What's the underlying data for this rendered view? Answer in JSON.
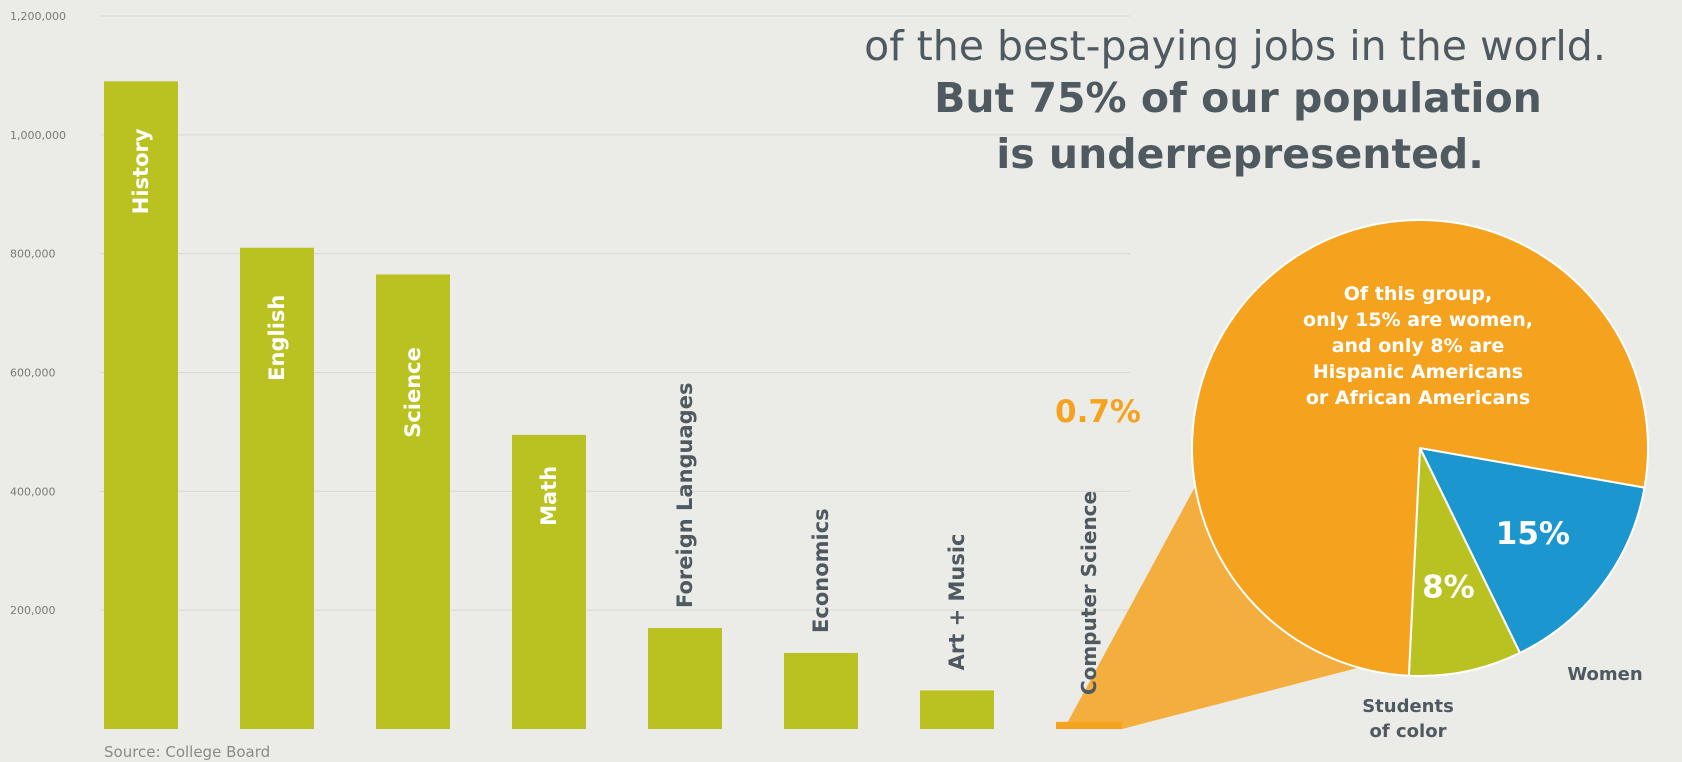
{
  "headline": {
    "line1": "of the best-paying jobs in the world.",
    "line2": "But 75% of our population",
    "line3": "is underrepresented."
  },
  "source": "Source: College Board",
  "colors": {
    "bar": "#b9c221",
    "highlight": "#f5a31e",
    "women": "#1b96cf",
    "students_of_color": "#b9c221",
    "text": "#4e5960",
    "background": "#ebebe8"
  },
  "chart_data": [
    {
      "type": "bar",
      "categories": [
        "History",
        "English",
        "Science",
        "Math",
        "Foreign Languages",
        "Economics",
        "Art + Music",
        "Computer Science"
      ],
      "values": [
        1090000,
        810000,
        765000,
        495000,
        170000,
        128000,
        65000,
        12000
      ],
      "yticks": [
        "1,200,000",
        "1,000,000",
        "800,000",
        "600,000",
        "400,000",
        "200,000"
      ],
      "ylim": [
        0,
        1200000
      ],
      "grid": true,
      "annotations": [
        {
          "category": "Computer Science",
          "text": "0.7%"
        }
      ]
    },
    {
      "type": "pie",
      "note_lines": [
        "Of this group,",
        "only 15% are women,",
        "and only 8% are",
        "Hispanic Americans",
        "or African Americans"
      ],
      "slices": [
        {
          "label": "Women",
          "value": 15,
          "text": "15%",
          "color": "#1b96cf"
        },
        {
          "label_lines": [
            "Students",
            "of color"
          ],
          "value": 8,
          "text": "8%",
          "color": "#b9c221"
        },
        {
          "value": 77,
          "color": "#f5a31e"
        }
      ]
    }
  ]
}
